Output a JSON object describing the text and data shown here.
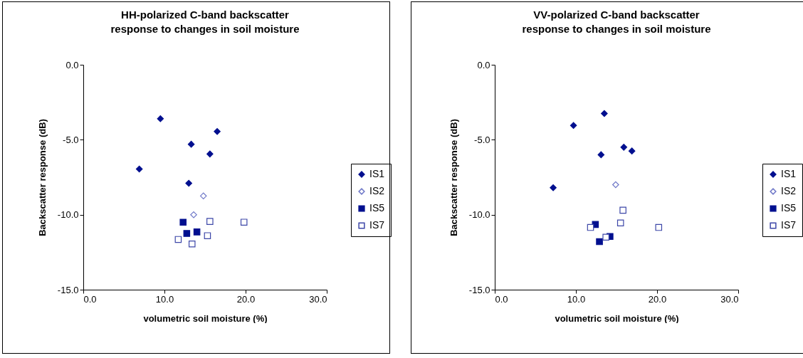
{
  "chart_data": [
    {
      "type": "scatter",
      "title": "HH-polarized C-band backscatter\nresponse to changes in soil moisture",
      "xlabel": "volumetric soil moisture (%)",
      "ylabel": "Backscatter response (dB)",
      "xlim": [
        0,
        30
      ],
      "ylim": [
        -15,
        0
      ],
      "xticks": [
        {
          "value": 0,
          "label": "0.0"
        },
        {
          "value": 10,
          "label": "10.0"
        },
        {
          "value": 20,
          "label": "20.0"
        },
        {
          "value": 30,
          "label": "30.0"
        }
      ],
      "yticks": [
        {
          "value": 0,
          "label": "0.0"
        },
        {
          "value": -5,
          "label": "-5.0"
        },
        {
          "value": -10,
          "label": "-10.0"
        },
        {
          "value": -15,
          "label": "-15.0"
        }
      ],
      "grid": false,
      "legend": "right",
      "series": [
        {
          "name": "IS1",
          "color": "#000f8f",
          "marker": "diamond",
          "x": [
            9.5,
            16.5,
            13.3,
            15.6,
            6.9,
            13.0
          ],
          "values": [
            -3.6,
            -4.45,
            -5.3,
            -5.95,
            -6.95,
            -7.9
          ]
        },
        {
          "name": "IS2",
          "color": "#6f78c8",
          "marker": "diamond",
          "x": [
            14.8,
            13.6
          ],
          "values": [
            -8.75,
            -10.0
          ]
        },
        {
          "name": "IS5",
          "color": "#000f8f",
          "marker": "square",
          "x": [
            12.3,
            12.75,
            14.0
          ],
          "values": [
            -10.5,
            -11.25,
            -11.15
          ]
        },
        {
          "name": "IS7",
          "color": "#3d47a8",
          "marker": "square",
          "x": [
            15.6,
            19.8,
            15.3,
            11.7,
            13.4
          ],
          "values": [
            -10.45,
            -10.5,
            -11.4,
            -11.65,
            -11.95
          ]
        }
      ]
    },
    {
      "type": "scatter",
      "title": "VV-polarized C-band backscatter\nresponse to changes in soil moisture",
      "xlabel": "volumetric soil moisture (%)",
      "ylabel": "Backscatter response (dB)",
      "xlim": [
        0,
        30
      ],
      "ylim": [
        -15,
        0
      ],
      "xticks": [
        {
          "value": 0,
          "label": "0.0"
        },
        {
          "value": 10,
          "label": "10.0"
        },
        {
          "value": 20,
          "label": "20.0"
        },
        {
          "value": 30,
          "label": "30.0"
        }
      ],
      "yticks": [
        {
          "value": 0,
          "label": "0.0"
        },
        {
          "value": -5,
          "label": "-5.0"
        },
        {
          "value": -10,
          "label": "-10.0"
        },
        {
          "value": -15,
          "label": "-15.0"
        }
      ],
      "grid": false,
      "legend": "right",
      "series": [
        {
          "name": "IS1",
          "color": "#000f8f",
          "marker": "diamond",
          "x": [
            13.5,
            9.7,
            15.9,
            16.9,
            13.1,
            7.2
          ],
          "values": [
            -3.25,
            -4.05,
            -5.5,
            -5.75,
            -6.0,
            -8.2
          ]
        },
        {
          "name": "IS2",
          "color": "#6f78c8",
          "marker": "diamond",
          "x": [
            14.9
          ],
          "values": [
            -8.0
          ]
        },
        {
          "name": "IS5",
          "color": "#000f8f",
          "marker": "square",
          "x": [
            12.4,
            14.2,
            12.9
          ],
          "values": [
            -10.65,
            -11.45,
            -11.8
          ]
        },
        {
          "name": "IS7",
          "color": "#3d47a8",
          "marker": "square",
          "x": [
            15.8,
            15.5,
            11.8,
            20.2,
            13.7
          ],
          "values": [
            -9.7,
            -10.55,
            -10.85,
            -10.85,
            -11.5
          ]
        }
      ]
    }
  ]
}
